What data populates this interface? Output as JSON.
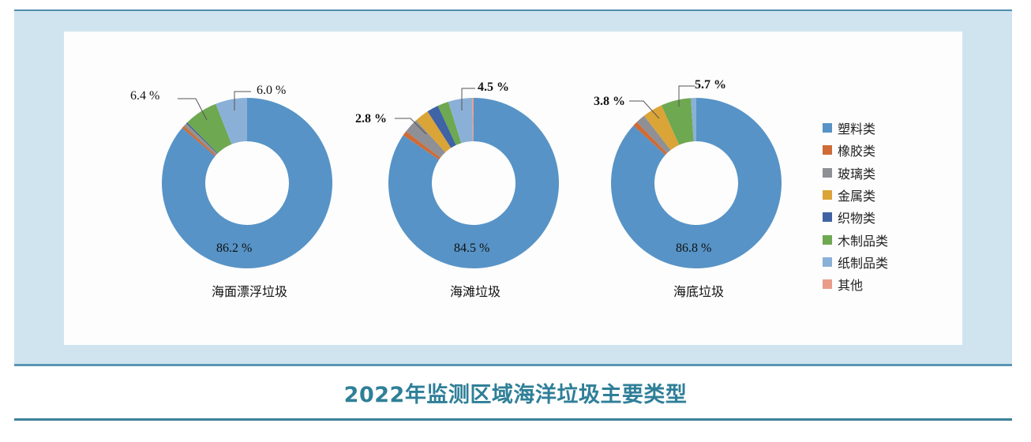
{
  "title": "2022年监测区域海洋垃圾主要类型",
  "colors": {
    "frame_bg": "#d0e4ef",
    "frame_line": "#4f8fae",
    "title": "#2f7f98"
  },
  "legend": [
    {
      "label": "塑料类",
      "color": "#5793c6"
    },
    {
      "label": "橡胶类",
      "color": "#cf6b36"
    },
    {
      "label": "玻璃类",
      "color": "#8e9095"
    },
    {
      "label": "金属类",
      "color": "#dba437"
    },
    {
      "label": "织物类",
      "color": "#3f63a5"
    },
    {
      "label": "木制品类",
      "color": "#6ea851"
    },
    {
      "label": "纸制品类",
      "color": "#8bb0d7"
    },
    {
      "label": "其他",
      "color": "#ea9c8b"
    }
  ],
  "charts": [
    {
      "caption": "海面漂浮垃圾",
      "main_label": "86.2 %",
      "label_a": "6.4 %",
      "label_b": "6.0 %"
    },
    {
      "caption": "海滩垃圾",
      "main_label": "84.5 %",
      "label_a": "2.8 %",
      "label_b": "4.5 %"
    },
    {
      "caption": "海底垃圾",
      "main_label": "86.8 %",
      "label_a": "3.8 %",
      "label_b": "5.7 %"
    }
  ],
  "chart_data": [
    {
      "type": "pie",
      "variant": "donut",
      "title": "海面漂浮垃圾",
      "categories": [
        "塑料类",
        "橡胶类",
        "玻璃类",
        "金属类",
        "织物类",
        "木制品类",
        "纸制品类",
        "其他"
      ],
      "values": [
        86.2,
        0.5,
        0.5,
        0.1,
        0.3,
        6.4,
        6.0,
        0.0
      ],
      "labeled_values": {
        "塑料类": 86.2,
        "木制品类": 6.4,
        "纸制品类": 6.0
      }
    },
    {
      "type": "pie",
      "variant": "donut",
      "title": "海滩垃圾",
      "categories": [
        "塑料类",
        "橡胶类",
        "玻璃类",
        "金属类",
        "织物类",
        "木制品类",
        "纸制品类",
        "其他"
      ],
      "values": [
        84.5,
        0.9,
        2.8,
        2.7,
        2.2,
        2.1,
        4.5,
        0.3
      ],
      "labeled_values": {
        "塑料类": 84.5,
        "玻璃类": 2.8,
        "纸制品类": 4.5
      }
    },
    {
      "type": "pie",
      "variant": "donut",
      "title": "海底垃圾",
      "categories": [
        "塑料类",
        "橡胶类",
        "玻璃类",
        "金属类",
        "织物类",
        "木制品类",
        "纸制品类",
        "其他"
      ],
      "values": [
        86.8,
        0.9,
        1.8,
        3.8,
        0.0,
        5.7,
        1.0,
        0.0
      ],
      "labeled_values": {
        "塑料类": 86.8,
        "金属类": 3.8,
        "木制品类": 5.7
      }
    }
  ]
}
